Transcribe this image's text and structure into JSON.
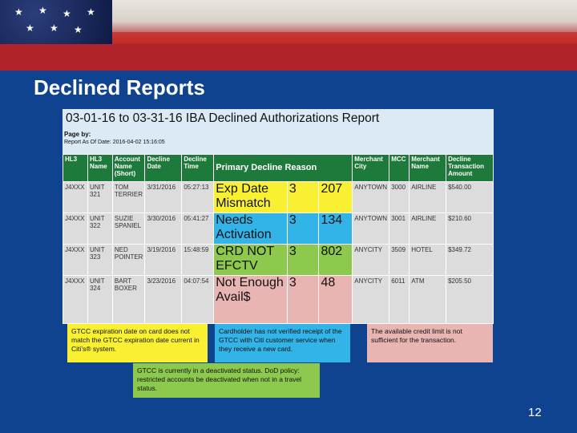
{
  "slide": {
    "title": "Declined Reports",
    "page_number": "12"
  },
  "report": {
    "title": "03-01-16 to 03-31-16 IBA Declined Authorizations Report",
    "page_label": "Page by:",
    "as_of": "Report As Of Date: 2016-04-02 15:16:05",
    "columns": {
      "hl3": "HL3",
      "hl3_name": "HL3 Name",
      "account_name": "Account Name (Short)",
      "decline_date": "Decline Date",
      "decline_time": "Decline Time",
      "primary_reason": "Primary Decline Reason",
      "merchant_city": "Merchant City",
      "mcc": "MCC",
      "merchant_name": "Merchant Name",
      "amount": "Decline Transaction Amount"
    },
    "rows": [
      {
        "hl3": "J4XXX",
        "hl3_name": "UNIT 321",
        "account": "TOM TERRIER",
        "date": "3/31/2016",
        "time": "05:27:13",
        "reason": "Exp Date Mismatch",
        "code": "3",
        "num": "207",
        "city": "ANYTOWN",
        "mcc": "3000",
        "merchant": "AIRLINE",
        "amount": "$540.00"
      },
      {
        "hl3": "J4XXX",
        "hl3_name": "UNIT 322",
        "account": "SUZIE SPANIEL",
        "date": "3/30/2016",
        "time": "05:41:27",
        "reason": "Needs Activation",
        "code": "3",
        "num": "134",
        "city": "ANYTOWN",
        "mcc": "3001",
        "merchant": "AIRLINE",
        "amount": "$210.60"
      },
      {
        "hl3": "J4XXX",
        "hl3_name": "UNIT 323",
        "account": "NED POINTER",
        "date": "3/19/2016",
        "time": "15:48:59",
        "reason": "CRD NOT EFCTV",
        "code": "3",
        "num": "802",
        "city": "ANYCITY",
        "mcc": "3509",
        "merchant": "HOTEL",
        "amount": "$349.72"
      },
      {
        "hl3": "J4XXX",
        "hl3_name": "UNIT 324",
        "account": "BART BOXER",
        "date": "3/23/2016",
        "time": "04:07:54",
        "reason": "Not Enough Avail$",
        "code": "3",
        "num": "48",
        "city": "ANYCITY",
        "mcc": "6011",
        "merchant": "ATM",
        "amount": "$205.50"
      }
    ]
  },
  "callouts": {
    "yellow": "GTCC expiration date on card does not match the GTCC expiration date current in Citi’s® system.",
    "blue": "Cardholder has not verified receipt of the GTCC with Citi customer service when they receive a new card.",
    "pink": "The available credit limit is not sufficient for the transaction.",
    "green": "GTCC is currently in a deactivated status. DoD policy: restricted accounts be deactivated when not in a travel status."
  },
  "colors": {
    "slide_blue": "#10438f",
    "header_green": "#1e7a3a",
    "yellow": "#f9f032",
    "blue": "#32b4e8",
    "green": "#8cc94d",
    "pink": "#e8b5b2"
  }
}
